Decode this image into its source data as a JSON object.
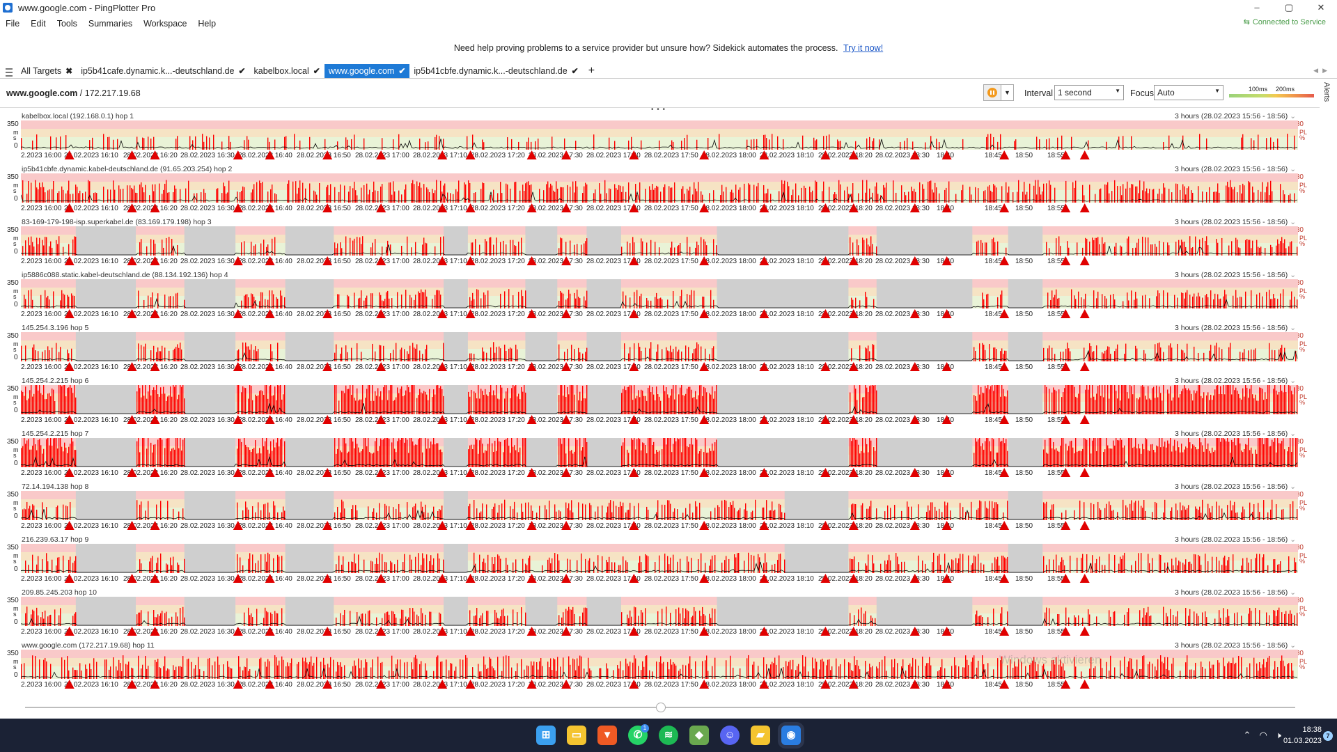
{
  "window": {
    "title": "www.google.com - PingPlotter Pro",
    "controls": [
      "–",
      "▢",
      "✕"
    ],
    "connection_status": "Connected to Service"
  },
  "menu": [
    "File",
    "Edit",
    "Tools",
    "Summaries",
    "Workspace",
    "Help"
  ],
  "banner": {
    "text": "Need help proving problems to a service provider but unsure how? Sidekick automates the process.",
    "link": "Try it now!"
  },
  "tabs": [
    {
      "label": "All Targets",
      "mark": "✖",
      "active": false
    },
    {
      "label": "ip5b41cafe.dynamic.k...-deutschland.de",
      "mark": "✔",
      "active": false
    },
    {
      "label": "kabelbox.local",
      "mark": "✔",
      "active": false
    },
    {
      "label": "www.google.com",
      "mark": "✔",
      "active": true
    },
    {
      "label": "ip5b41cbfe.dynamic.k...-deutschland.de",
      "mark": "✔",
      "active": false
    }
  ],
  "tab_add": "+",
  "toolbar": {
    "target_name": "www.google.com",
    "target_ip": " / 172.217.19.68",
    "interval_label": "Interval",
    "interval_value": "1 second",
    "focus_label": "Focus",
    "focus_value": "Auto",
    "scale_labels": [
      "100ms",
      "200ms"
    ],
    "alerts_label": "Alerts"
  },
  "graph_common": {
    "y_max": "350",
    "y_min": "0",
    "y_unit": "ms",
    "pl_max": "30",
    "pl_unit": "PL %",
    "range": "3 hours (28.02.2023 15:56 - 18:56)",
    "x_ticks": [
      "2.2023 16:00",
      "28.02.2023 16:10",
      "28.02.2023 16:20",
      "28.02.2023 16:30",
      "28.02.2023 16:40",
      "28.02.2023 16:50",
      "28.02.2023 17:00",
      "28.02.2023 17:10",
      "28.02.2023 17:20",
      "28.02.2023 17:30",
      "28.02.2023 17:40",
      "28.02.2023 17:50",
      "28.02.2023 18:00",
      "28.02.2023 18:10",
      "28.02.2023 18:20",
      "28.02.2023 18:30",
      "18:40",
      "18:45",
      "18:50",
      "18:55"
    ]
  },
  "hops": [
    {
      "label": "kabelbox.local (192.168.0.1) hop 1",
      "density": 0.18,
      "gray": [],
      "intensity": 0.4
    },
    {
      "label": "ip5b41cbfe.dynamic.kabel-deutschland.de (91.65.203.254) hop 2",
      "density": 0.55,
      "gray": [],
      "intensity": 0.7
    },
    {
      "label": "83-169-179-198-isp.superkabel.de (83.169.179.198) hop 3",
      "density": 0.45,
      "gray": [
        [
          0.043,
          0.09
        ],
        [
          0.128,
          0.168
        ],
        [
          0.207,
          0.245
        ],
        [
          0.331,
          0.35
        ],
        [
          0.395,
          0.42
        ],
        [
          0.443,
          0.47
        ],
        [
          0.545,
          0.648
        ],
        [
          0.67,
          0.745
        ],
        [
          0.773,
          0.8
        ]
      ],
      "intensity": 0.55
    },
    {
      "label": "ip5886c088.static.kabel-deutschland.de (88.134.192.136) hop 4",
      "density": 0.45,
      "gray": [
        [
          0.043,
          0.09
        ],
        [
          0.128,
          0.168
        ],
        [
          0.207,
          0.245
        ],
        [
          0.331,
          0.35
        ],
        [
          0.395,
          0.42
        ],
        [
          0.443,
          0.47
        ],
        [
          0.545,
          0.648
        ],
        [
          0.67,
          0.745
        ],
        [
          0.773,
          0.8
        ]
      ],
      "intensity": 0.55
    },
    {
      "label": "145.254.3.196 hop 5",
      "density": 0.45,
      "gray": [
        [
          0.043,
          0.09
        ],
        [
          0.128,
          0.168
        ],
        [
          0.207,
          0.245
        ],
        [
          0.331,
          0.35
        ],
        [
          0.395,
          0.42
        ],
        [
          0.443,
          0.47
        ],
        [
          0.545,
          0.648
        ],
        [
          0.67,
          0.745
        ],
        [
          0.773,
          0.8
        ]
      ],
      "intensity": 0.55
    },
    {
      "label": "145.254.2.215 hop 6",
      "density": 0.9,
      "gray": [
        [
          0.043,
          0.09
        ],
        [
          0.128,
          0.168
        ],
        [
          0.207,
          0.245
        ],
        [
          0.331,
          0.35
        ],
        [
          0.395,
          0.42
        ],
        [
          0.443,
          0.47
        ],
        [
          0.545,
          0.648
        ],
        [
          0.67,
          0.745
        ],
        [
          0.773,
          0.8
        ]
      ],
      "intensity": 1.0
    },
    {
      "label": "145.254.2.215 hop 7",
      "density": 0.95,
      "gray": [
        [
          0.043,
          0.09
        ],
        [
          0.128,
          0.168
        ],
        [
          0.207,
          0.245
        ],
        [
          0.331,
          0.35
        ],
        [
          0.395,
          0.42
        ],
        [
          0.443,
          0.47
        ],
        [
          0.545,
          0.648
        ],
        [
          0.67,
          0.745
        ],
        [
          0.773,
          0.8
        ]
      ],
      "intensity": 1.0
    },
    {
      "label": "72.14.194.138 hop 8",
      "density": 0.45,
      "gray": [
        [
          0.043,
          0.09
        ],
        [
          0.128,
          0.168
        ],
        [
          0.207,
          0.245
        ],
        [
          0.331,
          0.35
        ],
        [
          0.598,
          0.648
        ],
        [
          0.773,
          0.8
        ]
      ],
      "intensity": 0.6
    },
    {
      "label": "216.239.63.17 hop 9",
      "density": 0.45,
      "gray": [
        [
          0.043,
          0.09
        ],
        [
          0.128,
          0.168
        ],
        [
          0.207,
          0.245
        ],
        [
          0.331,
          0.35
        ],
        [
          0.598,
          0.648
        ],
        [
          0.773,
          0.8
        ]
      ],
      "intensity": 0.6
    },
    {
      "label": "209.85.245.203 hop 10",
      "density": 0.45,
      "gray": [
        [
          0.043,
          0.09
        ],
        [
          0.128,
          0.168
        ],
        [
          0.207,
          0.245
        ],
        [
          0.331,
          0.35
        ],
        [
          0.395,
          0.42
        ],
        [
          0.443,
          0.47
        ],
        [
          0.545,
          0.648
        ],
        [
          0.67,
          0.745
        ],
        [
          0.773,
          0.8
        ]
      ],
      "intensity": 0.55
    },
    {
      "label": "www.google.com (172.217.19.68) hop 11",
      "density": 0.6,
      "gray": [],
      "intensity": 0.75
    }
  ],
  "loss_markers": [
    0.038,
    0.087,
    0.105,
    0.17,
    0.195,
    0.24,
    0.282,
    0.33,
    0.352,
    0.4,
    0.427,
    0.48,
    0.535,
    0.582,
    0.63,
    0.652,
    0.7,
    0.725,
    0.77,
    0.818,
    0.833
  ],
  "colors": {
    "loss": "#e00000",
    "bar": "#ff0000",
    "latency_line": "#000000",
    "gray_period": "#cfcfcf",
    "band_high": "#f9c9c9",
    "band_mid": "#f6e3c4",
    "band_low": "#e9f3d7",
    "active_tab": "#1e7ad6"
  },
  "watermark": "Windows aktivieren",
  "taskbar": {
    "icons": [
      "windows-start-icon",
      "file-explorer-icon",
      "brave-browser-icon",
      "whatsapp-icon",
      "spotify-icon",
      "minecraft-icon",
      "discord-icon",
      "notes-icon",
      "pingplotter-icon"
    ],
    "whatsapp_badge": "1",
    "time": "18:38",
    "date": "01.03.2023",
    "notification_count": "7"
  }
}
